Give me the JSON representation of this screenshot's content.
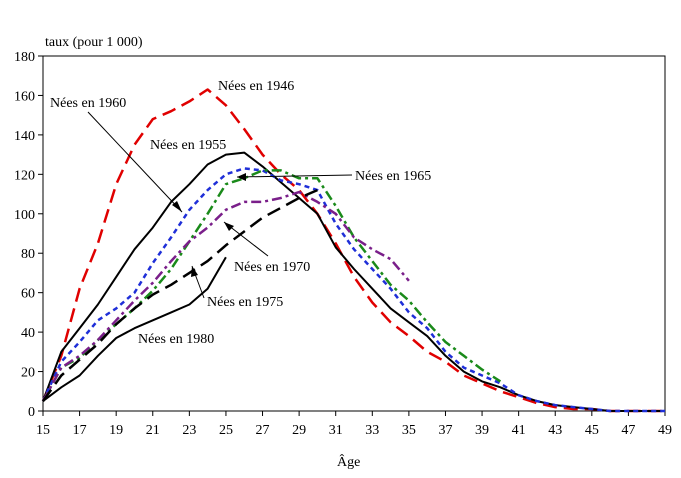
{
  "chart_data": {
    "type": "line",
    "title": "",
    "ylabel": "taux (pour 1 000)",
    "xlabel": "Âge",
    "xlim": [
      15,
      49
    ],
    "ylim": [
      0,
      180
    ],
    "xticks": [
      "15",
      "17",
      "19",
      "21",
      "23",
      "25",
      "27",
      "29",
      "31",
      "33",
      "35",
      "37",
      "39",
      "41",
      "43",
      "45",
      "47",
      "49"
    ],
    "yticks": [
      "0",
      "20",
      "40",
      "60",
      "80",
      "100",
      "120",
      "140",
      "160",
      "180"
    ],
    "grid": false,
    "series": [
      {
        "name": "Nées en 1946",
        "color": "#e00000",
        "dash": "long-dash",
        "x": [
          15,
          16,
          17,
          18,
          19,
          20,
          21,
          22,
          23,
          24,
          25,
          26,
          27,
          28,
          29,
          30,
          31,
          32,
          33,
          34,
          35,
          36,
          37,
          38,
          39,
          40,
          41,
          42,
          43,
          44,
          45,
          46,
          47,
          48,
          49
        ],
        "y": [
          5,
          28,
          62,
          85,
          115,
          135,
          148,
          152,
          157,
          163,
          155,
          143,
          130,
          120,
          112,
          100,
          85,
          68,
          55,
          45,
          38,
          30,
          25,
          18,
          14,
          10,
          7,
          4,
          2,
          1,
          1,
          0,
          0,
          0,
          0
        ]
      },
      {
        "name": "Nées en 1955",
        "color": "#000000",
        "dash": "solid",
        "x": [
          15,
          16,
          17,
          18,
          19,
          20,
          21,
          22,
          23,
          24,
          25,
          26,
          27,
          28,
          29,
          30,
          31,
          32,
          33,
          34,
          35,
          36,
          37,
          38,
          39,
          40,
          41,
          42,
          43,
          44,
          45,
          46,
          47,
          48,
          49
        ],
        "y": [
          5,
          30,
          42,
          54,
          68,
          82,
          93,
          106,
          115,
          125,
          130,
          131,
          124,
          116,
          108,
          100,
          83,
          72,
          62,
          52,
          45,
          38,
          28,
          20,
          15,
          12,
          8,
          5,
          3,
          2,
          1,
          0,
          0,
          0,
          0
        ]
      },
      {
        "name": "Nées en 1960",
        "color": "#1f2fd8",
        "dash": "short-dash",
        "x": [
          15,
          16,
          17,
          18,
          19,
          20,
          21,
          22,
          23,
          24,
          25,
          26,
          27,
          28,
          29,
          30,
          31,
          32,
          33,
          34,
          35,
          36,
          37,
          38,
          39,
          40,
          41,
          42,
          43,
          44,
          45,
          46,
          47,
          48,
          49
        ],
        "y": [
          5,
          25,
          35,
          46,
          52,
          60,
          75,
          88,
          102,
          112,
          120,
          123,
          122,
          117,
          115,
          112,
          95,
          82,
          72,
          62,
          50,
          42,
          30,
          22,
          18,
          14,
          8,
          5,
          3,
          2,
          1,
          0,
          0,
          0,
          0
        ]
      },
      {
        "name": "Nées en 1965",
        "color": "#1a8a1a",
        "dash": "dash-dot",
        "x": [
          15,
          16,
          17,
          18,
          19,
          20,
          21,
          22,
          23,
          24,
          25,
          26,
          27,
          28,
          29,
          30,
          31,
          32,
          33,
          34,
          35,
          36,
          37,
          38,
          39,
          40
        ],
        "y": [
          5,
          22,
          27,
          36,
          44,
          52,
          61,
          72,
          86,
          100,
          115,
          118,
          122,
          122,
          118,
          118,
          104,
          88,
          76,
          64,
          56,
          45,
          35,
          28,
          21,
          15
        ]
      },
      {
        "name": "Nées en 1970",
        "color": "#7a1f8a",
        "dash": "dash-dot",
        "x": [
          15,
          16,
          17,
          18,
          19,
          20,
          21,
          22,
          23,
          24,
          25,
          26,
          27,
          28,
          29,
          30,
          31,
          32,
          33,
          34,
          35
        ],
        "y": [
          5,
          22,
          28,
          36,
          46,
          56,
          65,
          76,
          86,
          93,
          102,
          106,
          106,
          108,
          111,
          106,
          100,
          88,
          82,
          77,
          66
        ]
      },
      {
        "name": "Nées en 1975",
        "color": "#000000",
        "dash": "long-dash",
        "x": [
          15,
          16,
          17,
          18,
          19,
          20,
          21,
          22,
          23,
          24,
          25,
          26,
          27,
          28,
          29,
          30
        ],
        "y": [
          5,
          18,
          26,
          34,
          44,
          52,
          59,
          64,
          70,
          76,
          84,
          91,
          98,
          103,
          108,
          112
        ]
      },
      {
        "name": "Nées en 1980",
        "color": "#000000",
        "dash": "solid",
        "x": [
          15,
          16,
          17,
          18,
          19,
          20,
          21,
          22,
          23,
          24,
          25
        ],
        "y": [
          5,
          12,
          18,
          28,
          37,
          42,
          46,
          50,
          54,
          62,
          78
        ]
      }
    ],
    "annotations": [
      {
        "text": "Nées en 1946",
        "series": 0
      },
      {
        "text": "Nées en 1960",
        "series": 2
      },
      {
        "text": "Nées en 1955",
        "series": 1
      },
      {
        "text": "Nées en 1965",
        "series": 3
      },
      {
        "text": "Nées en 1970",
        "series": 4
      },
      {
        "text": "Nées en 1975",
        "series": 5
      },
      {
        "text": "Nées en 1980",
        "series": 6
      }
    ]
  }
}
